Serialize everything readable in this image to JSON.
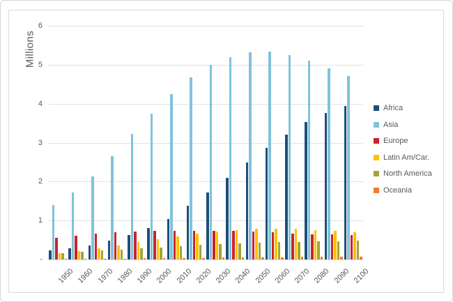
{
  "chart_data": {
    "type": "bar",
    "title": "",
    "ylabel": "Millions",
    "xlabel": "",
    "ylim": [
      0,
      6
    ],
    "grid": true,
    "legend_position": "right",
    "y_ticks": [
      {
        "v": 6,
        "label": "6"
      },
      {
        "v": 5,
        "label": "5"
      },
      {
        "v": 4,
        "label": "4"
      },
      {
        "v": 3,
        "label": "3"
      },
      {
        "v": 2,
        "label": "2"
      },
      {
        "v": 1,
        "label": "1"
      },
      {
        "v": 0,
        "label": "-"
      }
    ],
    "categories": [
      "1950",
      "1960",
      "1970",
      "1980",
      "1990",
      "2000",
      "2010",
      "2020",
      "2030",
      "2040",
      "2050",
      "2060",
      "2070",
      "2080",
      "2090",
      "2100"
    ],
    "series": [
      {
        "name": "Africa",
        "color": "#1F4E79",
        "values": [
          0.23,
          0.28,
          0.36,
          0.48,
          0.63,
          0.81,
          1.04,
          1.38,
          1.72,
          2.1,
          2.49,
          2.87,
          3.21,
          3.52,
          3.77,
          3.94
        ]
      },
      {
        "name": "Asia",
        "color": "#7FC3DA",
        "values": [
          1.4,
          1.72,
          2.14,
          2.65,
          3.22,
          3.75,
          4.25,
          4.68,
          5.0,
          5.2,
          5.32,
          5.33,
          5.24,
          5.1,
          4.91,
          4.71
        ]
      },
      {
        "name": "Europe",
        "color": "#C9232E",
        "values": [
          0.55,
          0.61,
          0.66,
          0.69,
          0.72,
          0.73,
          0.74,
          0.74,
          0.74,
          0.73,
          0.71,
          0.69,
          0.67,
          0.65,
          0.64,
          0.62
        ]
      },
      {
        "name": "Latin Am/Car.",
        "color": "#FFC000",
        "values": [
          0.17,
          0.22,
          0.29,
          0.36,
          0.44,
          0.52,
          0.6,
          0.66,
          0.72,
          0.76,
          0.78,
          0.79,
          0.78,
          0.76,
          0.73,
          0.7
        ]
      },
      {
        "name": "North America",
        "color": "#A0A539",
        "values": [
          0.17,
          0.2,
          0.23,
          0.25,
          0.28,
          0.31,
          0.34,
          0.37,
          0.4,
          0.42,
          0.43,
          0.44,
          0.45,
          0.46,
          0.47,
          0.48
        ]
      },
      {
        "name": "Oceania",
        "color": "#ED7D31",
        "values": [
          0.01,
          0.02,
          0.02,
          0.02,
          0.03,
          0.03,
          0.04,
          0.04,
          0.05,
          0.05,
          0.06,
          0.06,
          0.07,
          0.07,
          0.07,
          0.07
        ]
      }
    ]
  }
}
